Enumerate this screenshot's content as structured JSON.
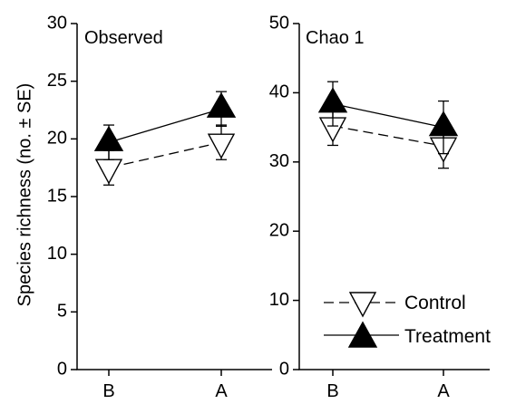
{
  "chart_data": {
    "type": "line",
    "ylabel": "Species richness (no. ± SE)",
    "legend": {
      "placement": "bottom-right",
      "entries": [
        {
          "name": "Control",
          "marker": "down-triangle-open",
          "line": "dashed"
        },
        {
          "name": "Treatment",
          "marker": "up-triangle-filled",
          "line": "solid"
        }
      ]
    },
    "panels": [
      {
        "title": "Observed",
        "categories": [
          "B",
          "A"
        ],
        "ylim": [
          0,
          30
        ],
        "yticks": [
          0,
          5,
          10,
          15,
          20,
          25,
          30
        ],
        "series": [
          {
            "name": "Control",
            "values": [
              17.5,
              19.7
            ],
            "se": [
              1.5,
              1.5
            ]
          },
          {
            "name": "Treatment",
            "values": [
              19.7,
              22.6
            ],
            "se": [
              1.5,
              1.5
            ]
          }
        ]
      },
      {
        "title": "Chao 1",
        "categories": [
          "B",
          "A"
        ],
        "ylim": [
          0,
          50
        ],
        "yticks": [
          0,
          10,
          20,
          30,
          40,
          50
        ],
        "series": [
          {
            "name": "Control",
            "values": [
              35.2,
              32.3
            ],
            "se": [
              2.8,
              3.2
            ]
          },
          {
            "name": "Treatment",
            "values": [
              38.4,
              35.0
            ],
            "se": [
              3.2,
              3.8
            ]
          }
        ]
      }
    ]
  }
}
